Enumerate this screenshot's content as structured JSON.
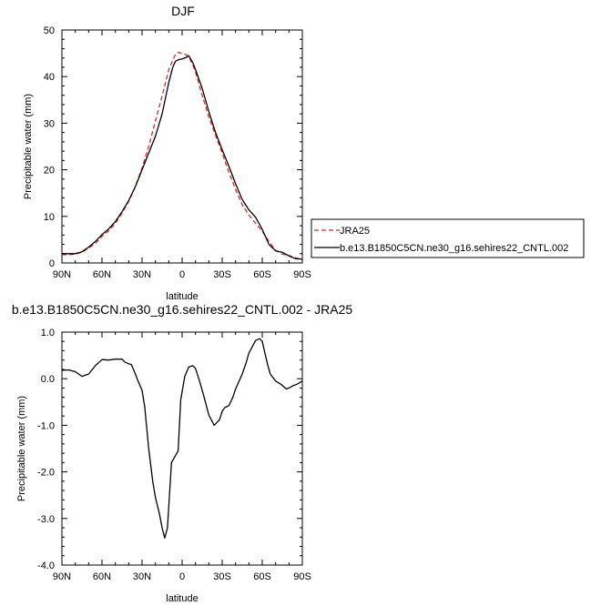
{
  "chart_data": [
    {
      "type": "line",
      "title": "DJF",
      "xlabel": "latitude",
      "ylabel": "Precipitable water (mm)",
      "xlim": [
        90,
        -90
      ],
      "ylim": [
        0,
        50
      ],
      "x_ticks": [
        90,
        60,
        30,
        0,
        -30,
        -60,
        -90
      ],
      "x_tick_labels": [
        "90N",
        "60N",
        "30N",
        "0",
        "30S",
        "60S",
        "90S"
      ],
      "y_ticks": [
        0,
        10,
        20,
        30,
        40,
        50
      ],
      "y_tick_labels": [
        "0",
        "10",
        "20",
        "30",
        "40",
        "50"
      ],
      "legend": {
        "placement": "outside-right"
      },
      "series": [
        {
          "name": "JRA25",
          "style": "dashed",
          "color": "#e8221c",
          "x": [
            90,
            85,
            80,
            75,
            70,
            65,
            60,
            55,
            50,
            45,
            40,
            35,
            30,
            25,
            20,
            15,
            10,
            7,
            5,
            3,
            0,
            -3,
            -5,
            -8,
            -10,
            -15,
            -20,
            -25,
            -30,
            -35,
            -40,
            -45,
            -50,
            -55,
            -60,
            -65,
            -70,
            -75,
            -80,
            -85,
            -90
          ],
          "y": [
            1.8,
            1.8,
            1.9,
            2.3,
            3.2,
            4.2,
            5.7,
            6.9,
            8.5,
            10.7,
            13.2,
            16.4,
            20.4,
            25.0,
            30.5,
            35.8,
            41.5,
            43.5,
            44.8,
            45.2,
            45.0,
            44.7,
            44.3,
            42.5,
            41.0,
            36.0,
            31.4,
            27.4,
            23.6,
            19.5,
            15.8,
            12.5,
            10.3,
            8.5,
            6.8,
            4.6,
            2.7,
            1.9,
            1.6,
            1.1,
            0.8
          ]
        },
        {
          "name": "b.e13.B1850C5CN.ne30_g16.sehires22_CNTL.002",
          "style": "solid",
          "color": "#000000",
          "x": [
            90,
            85,
            80,
            75,
            70,
            65,
            60,
            55,
            50,
            45,
            40,
            35,
            30,
            25,
            20,
            15,
            10,
            7,
            5,
            3,
            0,
            -3,
            -5,
            -8,
            -10,
            -15,
            -20,
            -25,
            -30,
            -35,
            -40,
            -45,
            -50,
            -55,
            -60,
            -65,
            -70,
            -75,
            -80,
            -85,
            -90
          ],
          "y": [
            2.0,
            2.0,
            2.0,
            2.4,
            3.4,
            4.6,
            6.1,
            7.3,
            8.9,
            11.0,
            13.4,
            16.4,
            20.0,
            23.6,
            27.2,
            32.0,
            38.7,
            42.0,
            43.3,
            43.6,
            43.8,
            44.1,
            44.5,
            43.0,
            41.5,
            37.5,
            32.5,
            28.0,
            24.3,
            20.8,
            17.0,
            13.6,
            11.4,
            9.8,
            7.2,
            4.0,
            2.6,
            2.3,
            1.5,
            0.9,
            0.8
          ]
        }
      ]
    },
    {
      "type": "line",
      "title": "b.e13.B1850C5CN.ne30_g16.sehires22_CNTL.002 - JRA25",
      "xlabel": "latitude",
      "ylabel": "Precipitable water (mm)",
      "xlim": [
        90,
        -90
      ],
      "ylim": [
        -4.0,
        1.0
      ],
      "x_ticks": [
        90,
        60,
        30,
        0,
        -30,
        -60,
        -90
      ],
      "x_tick_labels": [
        "90N",
        "60N",
        "30N",
        "0",
        "30S",
        "60S",
        "90S"
      ],
      "y_ticks": [
        1.0,
        0.0,
        -1.0,
        -2.0,
        -3.0,
        -4.0
      ],
      "y_tick_labels": [
        "1.0",
        "0.0",
        "-1.0",
        "-2.0",
        "-3.0",
        "-4.0"
      ],
      "series": [
        {
          "style": "solid",
          "color": "#000000",
          "x": [
            90,
            85,
            80,
            75,
            70,
            65,
            60,
            55,
            50,
            45,
            43,
            40,
            38,
            35,
            33,
            30,
            28,
            25,
            22,
            20,
            17,
            15,
            13,
            11,
            8,
            5,
            3,
            1,
            -2,
            -5,
            -8,
            -10,
            -13,
            -16,
            -20,
            -24,
            -28,
            -30,
            -32,
            -35,
            -38,
            -40,
            -45,
            -48,
            -50,
            -55,
            -58,
            -60,
            -62,
            -64,
            -66,
            -70,
            -74,
            -78,
            -80,
            -83,
            -86,
            -90
          ],
          "y": [
            0.18,
            0.19,
            0.15,
            0.05,
            0.1,
            0.28,
            0.41,
            0.4,
            0.42,
            0.42,
            0.36,
            0.32,
            0.3,
            0.1,
            -0.05,
            -0.25,
            -0.6,
            -1.5,
            -2.2,
            -2.55,
            -2.9,
            -3.2,
            -3.42,
            -3.2,
            -1.8,
            -1.65,
            -1.55,
            -0.45,
            0.05,
            0.25,
            0.28,
            0.22,
            -0.05,
            -0.35,
            -0.78,
            -1.0,
            -0.88,
            -0.7,
            -0.62,
            -0.58,
            -0.4,
            -0.22,
            0.1,
            0.35,
            0.55,
            0.82,
            0.86,
            0.8,
            0.55,
            0.3,
            0.1,
            -0.05,
            -0.12,
            -0.22,
            -0.2,
            -0.15,
            -0.12,
            -0.05
          ]
        }
      ]
    }
  ]
}
